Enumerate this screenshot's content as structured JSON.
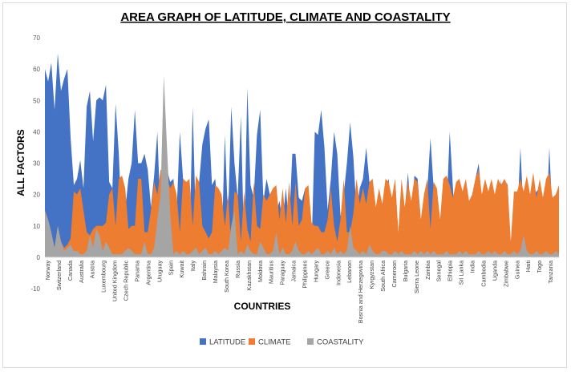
{
  "chart_data": {
    "type": "area",
    "title": "AREA GRAPH OF LATITUDE, CLIMATE AND COASTALITY",
    "xlabel": "COUNTRIES",
    "ylabel": "ALL FACTORS",
    "ylim": [
      -10,
      70
    ],
    "yticks": [
      -10,
      0,
      10,
      20,
      30,
      40,
      50,
      60,
      70
    ],
    "grid": false,
    "legend_position": "bottom",
    "x_tick_labels": [
      "Norway",
      "Switzerland",
      "Canada",
      "Australia",
      "Austria",
      "Luxembourg",
      "United Kingdom",
      "Czech Republic",
      "Panama",
      "Argentina",
      "Uruguay",
      "Spain",
      "Kuwait",
      "Italy",
      "Bahrain",
      "Malaysia",
      "South Korea",
      "Russia",
      "Kazakhstan",
      "Moldova",
      "Mauritius",
      "Paraguay",
      "Jamaica",
      "Philippines",
      "Hungary",
      "Greece",
      "Indonesia",
      "Lebanon",
      "Bosnia and Herzegovina",
      "Kyrgyzstan",
      "South Africa",
      "Cameroon",
      "Bulgaria",
      "Sierra Leone",
      "Zambia",
      "Senegal",
      "Ethiopia",
      "Sri Lanka",
      "India",
      "Cambodia",
      "Uganda",
      "Zimbabwe",
      "Guinea",
      "Haiti",
      "Togo",
      "Tanzania"
    ],
    "series": [
      {
        "name": "LATITUDE",
        "color": "#4472c4",
        "values": [
          60,
          56,
          62,
          47,
          65,
          53,
          57,
          60,
          38,
          23,
          25,
          31,
          22,
          48,
          53,
          37,
          50,
          51,
          50,
          55,
          24,
          22,
          49,
          33,
          9,
          15,
          25,
          30,
          47,
          30,
          30,
          33,
          28,
          16,
          26,
          40,
          12,
          12,
          28,
          24,
          25,
          14,
          40,
          25,
          24,
          4,
          48,
          9,
          24,
          36,
          41,
          44,
          23,
          25,
          15,
          3,
          39,
          12,
          48,
          30,
          19,
          45,
          3,
          54,
          23,
          19,
          39,
          47,
          18,
          25,
          20,
          10,
          14,
          18,
          11,
          22,
          10,
          33,
          33,
          19,
          18,
          22,
          20,
          3,
          40,
          39,
          47,
          35,
          15,
          25,
          40,
          33,
          13,
          20,
          30,
          43,
          32,
          14,
          22,
          25,
          35,
          24,
          23,
          15,
          12,
          15,
          22,
          25,
          11,
          25,
          7,
          24,
          15,
          27,
          13,
          26,
          25,
          12,
          5,
          21,
          38,
          22,
          12,
          10,
          25,
          15,
          40,
          22,
          2,
          25,
          15,
          20,
          13,
          20,
          25,
          30,
          18,
          9,
          19,
          12,
          18,
          6,
          25,
          4,
          24,
          1,
          10,
          12,
          35,
          13,
          24,
          20,
          19,
          21,
          22,
          19,
          10,
          35,
          12,
          17,
          20
        ]
      },
      {
        "name": "CLIMATE",
        "color": "#ed7d31",
        "values": [
          7,
          4,
          5,
          3,
          10,
          5,
          3,
          4,
          6,
          21,
          20,
          22,
          15,
          8,
          7,
          9,
          10,
          10,
          10,
          11,
          20,
          22,
          10,
          25,
          26,
          22,
          9,
          10,
          10,
          25,
          25,
          8,
          8,
          15,
          24,
          20,
          28,
          26,
          25,
          22,
          24,
          20,
          8,
          25,
          24,
          25,
          10,
          26,
          24,
          10,
          8,
          6,
          8,
          23,
          22,
          20,
          10,
          20,
          4,
          21,
          20,
          5,
          21,
          9,
          5,
          24,
          10,
          9,
          20,
          18,
          20,
          22,
          23,
          12,
          22,
          11,
          24,
          10,
          24,
          10,
          12,
          22,
          23,
          11,
          10,
          10,
          8,
          8,
          12,
          22,
          10,
          5,
          12,
          25,
          8,
          8,
          14,
          25,
          17,
          22,
          17,
          24,
          25,
          16,
          22,
          17,
          25,
          24,
          19,
          25,
          8,
          25,
          16,
          24,
          18,
          25,
          24,
          12,
          20,
          25,
          9,
          24,
          22,
          12,
          25,
          26,
          23,
          19,
          24,
          25,
          21,
          25,
          18,
          20,
          25,
          28,
          20,
          25,
          21,
          25,
          20,
          25,
          23,
          25,
          23,
          5,
          21,
          21,
          25,
          21,
          26,
          20,
          27,
          19,
          25,
          19,
          25,
          27,
          19,
          20,
          23
        ]
      },
      {
        "name": "COASTALITY",
        "color": "#a5a5a5",
        "values": [
          15,
          12,
          8,
          3,
          10,
          5,
          2,
          3,
          4,
          2,
          2,
          1,
          1,
          2,
          7,
          3,
          9,
          7,
          2,
          5,
          3,
          1,
          1,
          1,
          1,
          2,
          3,
          2,
          1,
          1,
          1,
          5,
          1,
          1,
          3,
          12,
          20,
          58,
          35,
          14,
          1,
          2,
          1,
          2,
          1,
          1,
          2,
          3,
          1,
          2,
          3,
          1,
          1,
          2,
          1,
          2,
          3,
          2,
          10,
          15,
          1,
          2,
          1,
          4,
          2,
          1,
          1,
          5,
          3,
          1,
          1,
          2,
          8,
          1,
          3,
          1,
          1,
          2,
          5,
          2,
          1,
          1,
          2,
          1,
          2,
          3,
          1,
          1,
          2,
          1,
          3,
          1,
          2,
          1,
          2,
          10,
          3,
          2,
          1,
          2,
          1,
          4,
          2,
          1,
          1,
          2,
          2,
          1,
          1,
          2,
          1,
          2,
          1,
          1,
          1,
          2,
          1,
          2,
          1,
          2,
          1,
          2,
          1,
          1,
          1,
          2,
          1,
          1,
          1,
          2,
          1,
          2,
          1,
          1,
          1,
          2,
          1,
          1,
          2,
          1,
          2,
          1,
          1,
          2,
          1,
          1,
          2,
          1,
          2,
          7,
          2,
          1,
          1,
          2,
          1,
          1,
          2,
          1,
          1,
          2,
          1
        ]
      }
    ]
  }
}
